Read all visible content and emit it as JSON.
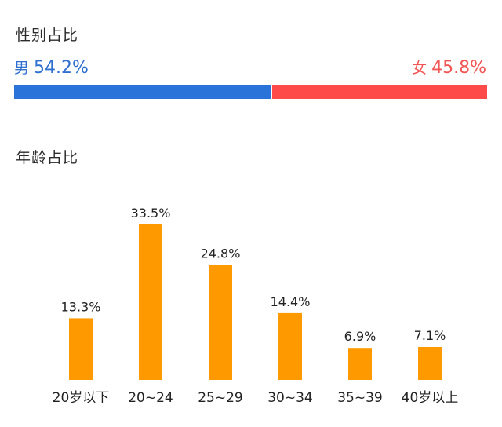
{
  "gender": {
    "title": "性别占比",
    "male": {
      "symbol": "男",
      "value": 54.2,
      "text": "54.2%",
      "color": "#2a74d9"
    },
    "female": {
      "symbol": "女",
      "value": 45.8,
      "text": "45.8%",
      "color": "#ff4a4a"
    }
  },
  "age": {
    "title": "年龄占比"
  },
  "chart_data": [
    {
      "type": "bar",
      "title": "性别占比",
      "categories": [
        "男",
        "女"
      ],
      "values": [
        54.2,
        45.8
      ],
      "labels": [
        "54.2%",
        "45.8%"
      ],
      "colors": [
        "#2a74d9",
        "#ff4a4a"
      ]
    },
    {
      "type": "bar",
      "title": "年龄占比",
      "categories": [
        "20岁以下",
        "20~24",
        "25~29",
        "30~34",
        "35~39",
        "40岁以上"
      ],
      "values": [
        13.3,
        33.5,
        24.8,
        14.4,
        6.9,
        7.1
      ],
      "labels": [
        "13.3%",
        "33.5%",
        "24.8%",
        "14.4%",
        "6.9%",
        "7.1%"
      ],
      "ylim": [
        0,
        33.5
      ],
      "grid": false,
      "color": "#ff9900"
    }
  ]
}
